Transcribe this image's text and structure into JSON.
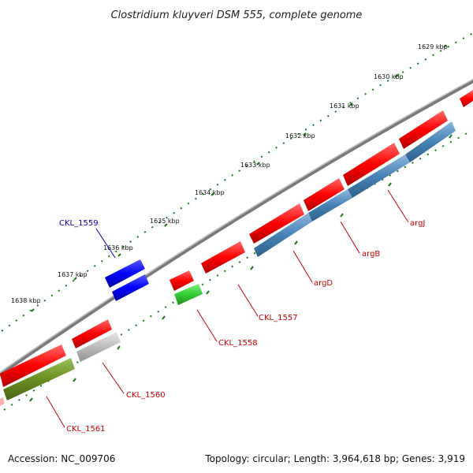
{
  "title": "Clostridium kluyveri DSM 555, complete genome",
  "footer": {
    "accession": "Accession: NC_009706",
    "summary": "Topology: circular; Length: 3,964,618 bp; Genes: 3,919"
  },
  "colors": {
    "backbone": "#777777",
    "tick": "#1a7a1a",
    "gene_red": "#ff1010",
    "label_red": "#cc0000",
    "label_blue": "#0000cc",
    "cds_blue": "#4682b4",
    "cds_olive": "#6b8e23",
    "cds_green": "#33cc33",
    "cds_gray": "#bbbbbb",
    "cds_pure_blue": "#0000ff"
  },
  "kbp_ticks": [
    "1629 kbp",
    "1630 kbp",
    "1631 kbp",
    "1632 kbp",
    "1633 kbp",
    "1634 kbp",
    "1635 kbp",
    "1636 kbp",
    "1637 kbp",
    "1638 kbp"
  ],
  "gene_labels": [
    "argJ",
    "argB",
    "argD",
    "CKL_1557",
    "CKL_1558",
    "CKL_1559",
    "CKL_1560",
    "CKL_1561"
  ]
}
